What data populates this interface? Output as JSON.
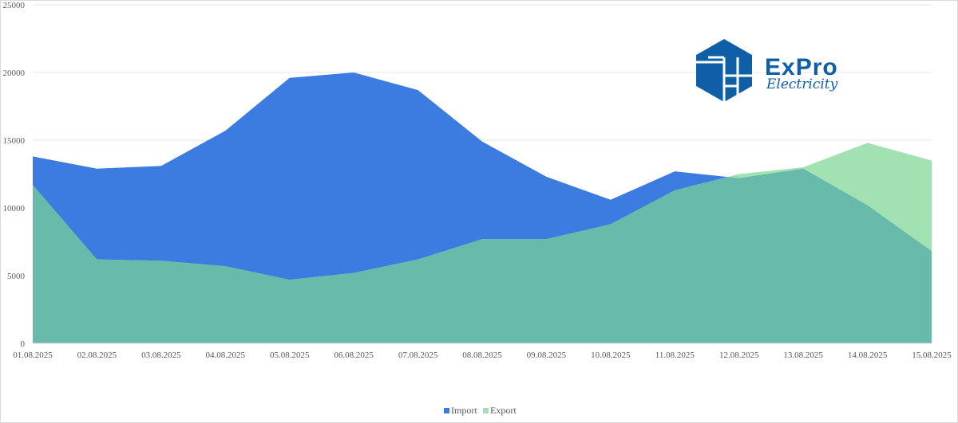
{
  "chart_data": {
    "type": "area",
    "categories": [
      "01.08.2025",
      "02.08.2025",
      "03.08.2025",
      "04.08.2025",
      "05.08.2025",
      "06.08.2025",
      "07.08.2025",
      "08.08.2025",
      "09.08.2025",
      "10.08.2025",
      "11.08.2025",
      "12.08.2025",
      "13.08.2025",
      "14.08.2025",
      "15.08.2025"
    ],
    "series": [
      {
        "name": "Import",
        "color": "#3c7be0",
        "values": [
          13800,
          12900,
          13100,
          15700,
          19600,
          20000,
          18700,
          14900,
          12300,
          10600,
          12700,
          12200,
          12900,
          10200,
          6800
        ]
      },
      {
        "name": "Export",
        "color": "#a2e2b2",
        "values": [
          11700,
          6200,
          6100,
          5700,
          4700,
          5200,
          6200,
          7700,
          7700,
          8800,
          11300,
          12500,
          13000,
          14800,
          13500
        ]
      }
    ],
    "overlap_color": "#68baab",
    "ylim": [
      0,
      25000
    ],
    "yticks": [
      0,
      5000,
      10000,
      15000,
      20000,
      25000
    ],
    "grid": true,
    "legend_position": "bottom"
  },
  "logo": {
    "word": "ExPro",
    "subtitle": "Electricity"
  }
}
